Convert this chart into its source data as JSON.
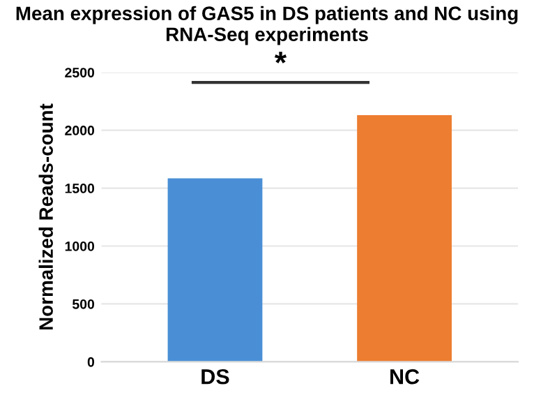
{
  "chart_data": {
    "type": "bar",
    "title": "Mean expression of GAS5 in DS patients and NC using RNA-Seq experiments",
    "ylabel": "Normalized Reads-count",
    "categories": [
      "DS",
      "NC"
    ],
    "values": [
      1585,
      2130
    ],
    "colors": [
      "#4a8fd6",
      "#ed7d31"
    ],
    "ylim": [
      0,
      2500
    ],
    "yticks": [
      0,
      500,
      1000,
      1500,
      2000,
      2500
    ],
    "grid": "y",
    "annotations": [
      "*"
    ]
  }
}
